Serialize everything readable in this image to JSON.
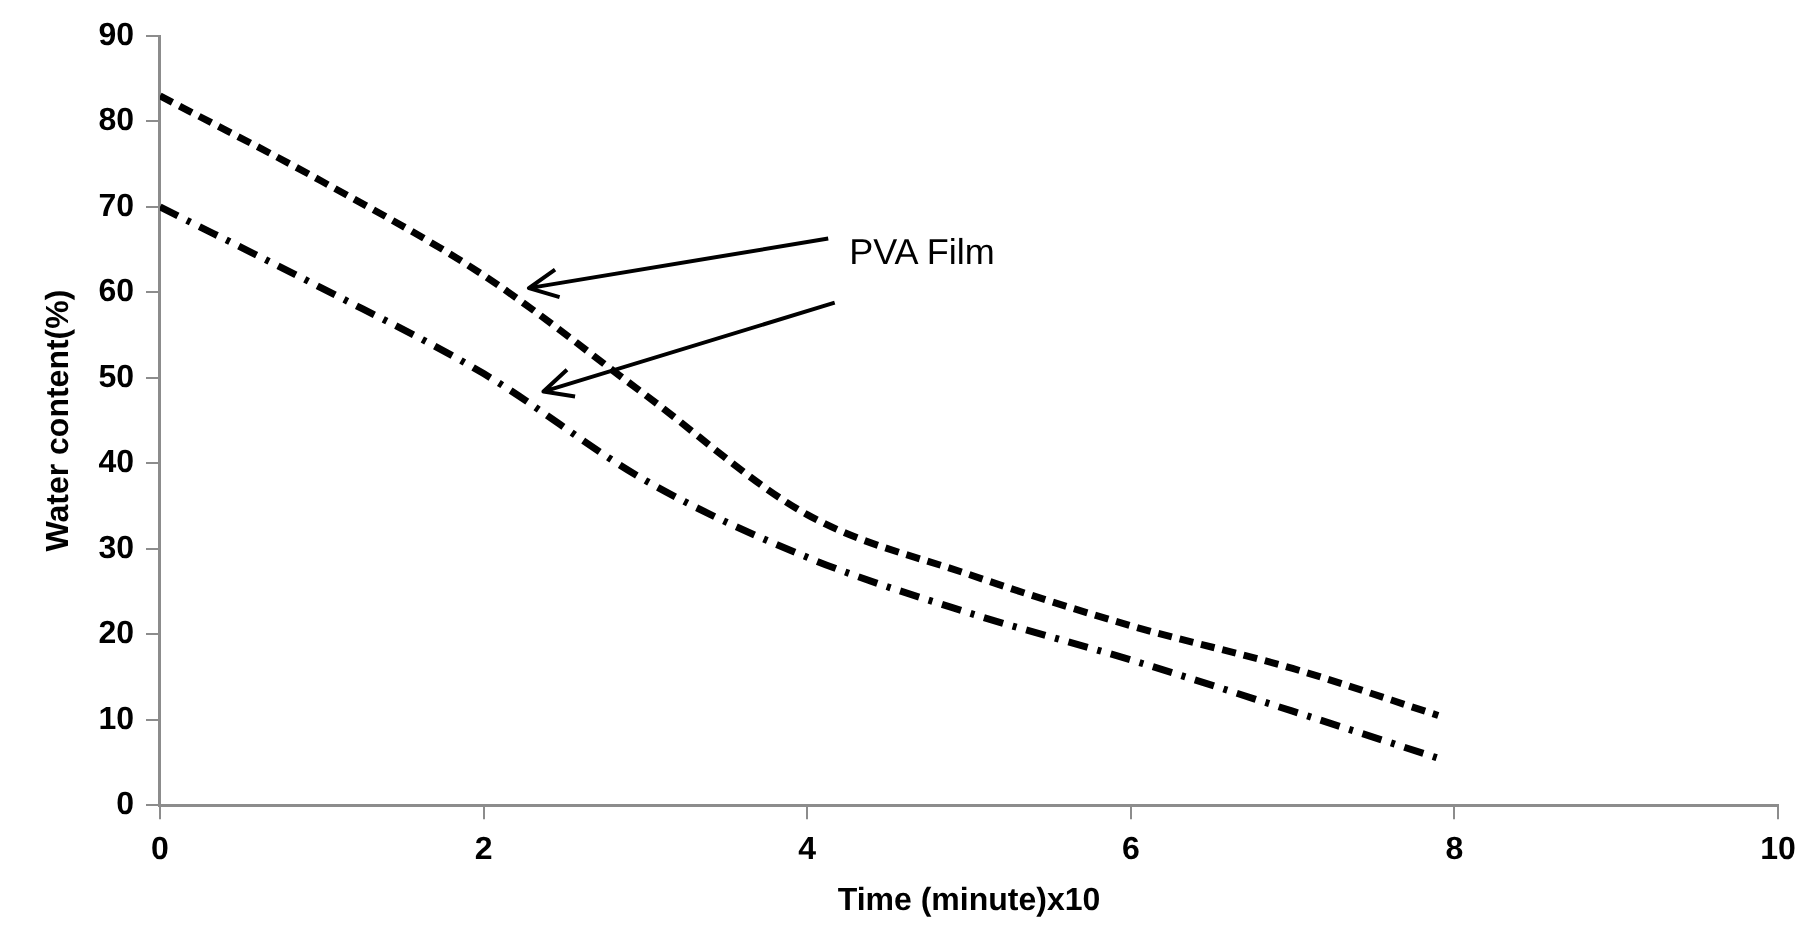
{
  "chart_data": {
    "type": "line",
    "xlabel": "Time (minute)x10",
    "ylabel": "Water content(%)",
    "xlim": [
      0,
      10
    ],
    "xticks": [
      0,
      2,
      4,
      6,
      8,
      10
    ],
    "ylim": [
      0,
      90
    ],
    "yticks": [
      0,
      10,
      20,
      30,
      40,
      50,
      60,
      70,
      80,
      90
    ],
    "grid": false,
    "legend": false,
    "marker": "none",
    "series": [
      {
        "color": "#000000",
        "line_style": "dashed",
        "x": [
          0,
          1,
          2,
          3,
          4,
          5,
          6,
          7,
          7.9
        ],
        "values": [
          83,
          73,
          62,
          48,
          34,
          27,
          21,
          16,
          10.5
        ]
      },
      {
        "color": "#000000",
        "line_style": "dashdot",
        "x": [
          0,
          1,
          2,
          3,
          4,
          5,
          6,
          7,
          7.9
        ],
        "values": [
          70,
          60.5,
          50.5,
          38,
          29,
          22.5,
          17,
          11,
          5.5
        ]
      }
    ],
    "annotations": [
      "PVA Film"
    ]
  }
}
